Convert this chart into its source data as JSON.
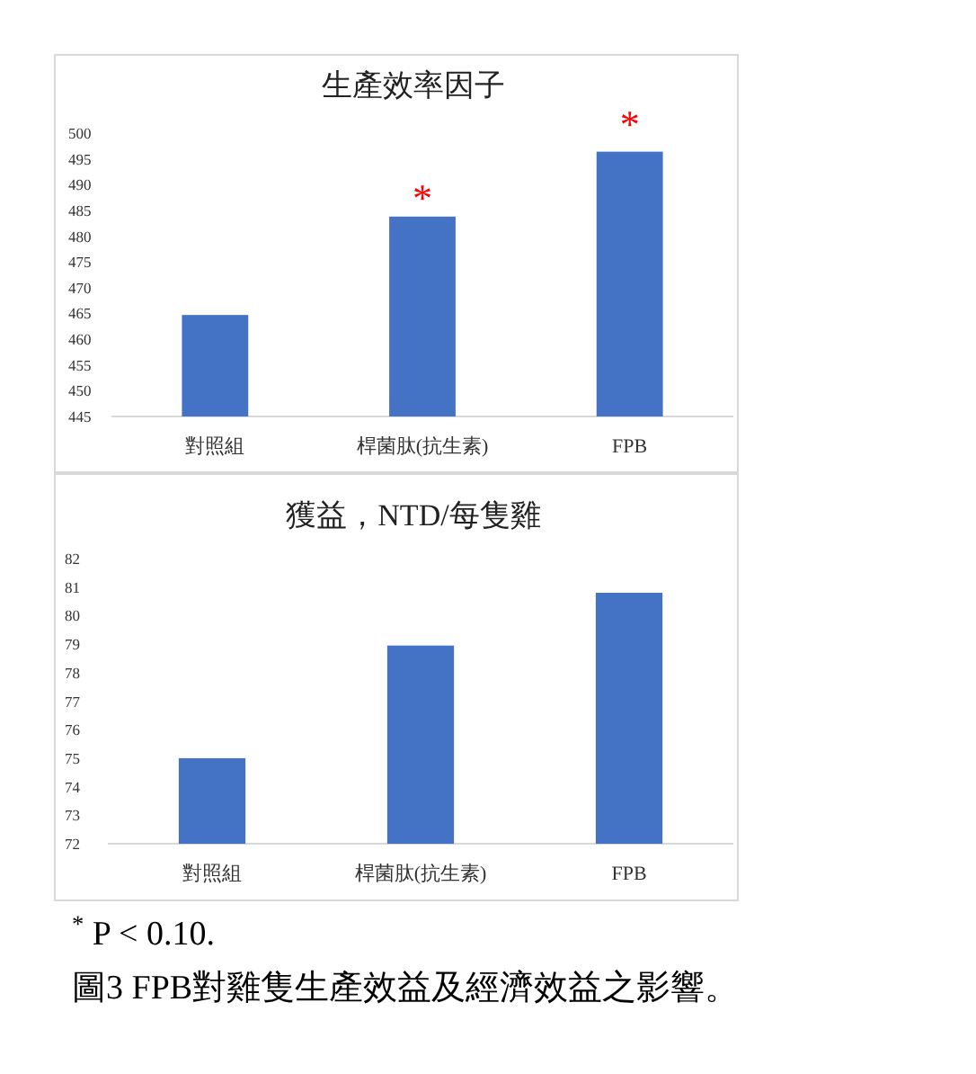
{
  "chart_data": [
    {
      "type": "bar",
      "title": "生產效率因子",
      "categories": [
        "對照組",
        "桿菌肽(抗生素)",
        "FPB"
      ],
      "values": [
        464.7,
        483.8,
        496.4
      ],
      "color": "#4472c4",
      "ylim": [
        445,
        500
      ],
      "yticks": [
        445,
        450,
        455,
        460,
        465,
        470,
        475,
        480,
        485,
        490,
        495,
        500
      ],
      "annotations": [
        "*",
        "*"
      ]
    },
    {
      "type": "bar",
      "title": "獲益，NTD/每隻雞",
      "categories": [
        "對照組",
        "桿菌肽(抗生素)",
        "FPB"
      ],
      "values": [
        75.0,
        78.95,
        80.8
      ],
      "color": "#4472c4",
      "ylim": [
        72,
        82
      ],
      "yticks": [
        72,
        73,
        74,
        75,
        76,
        77,
        78,
        79,
        80,
        81,
        82
      ],
      "annotations": [
        "$^{*}$ P < 0.10.",
        "圖3 FPB對雞隻生產效益及經濟效益之影響。"
      ]
    }
  ]
}
